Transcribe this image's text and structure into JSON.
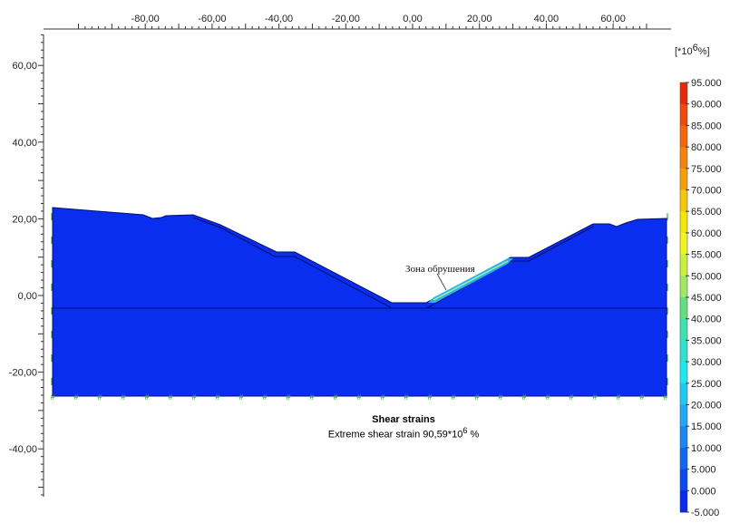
{
  "chart_data": {
    "type": "heatmap",
    "title": "Shear strains",
    "subtitle_prefix": "Extreme shear strain 90,59*10",
    "subtitle_exp": "6",
    "subtitle_suffix": " %",
    "x_ticks": [
      "-80,00",
      "-60,00",
      "-40,00",
      "-20,00",
      "0,00",
      "20,00",
      "40,00",
      "60,00"
    ],
    "x_tick_values": [
      -80,
      -60,
      -40,
      -20,
      0,
      20,
      40,
      60
    ],
    "y_ticks": [
      "60,00",
      "40,00",
      "20,00",
      "0,00",
      "-20,00",
      "-40,00"
    ],
    "y_tick_values": [
      60,
      40,
      20,
      0,
      -20,
      -40
    ],
    "annotation": "Зона обрушения",
    "colorbar": {
      "unit_prefix": "[*10",
      "unit_exp": "6",
      "unit_suffix": "%]",
      "labels": [
        "95.000",
        "90.000",
        "85.000",
        "80.000",
        "75.000",
        "70.000",
        "65.000",
        "60.000",
        "55.000",
        "50.000",
        "45.000",
        "40.000",
        "35.000",
        "30.000",
        "25.000",
        "20.000",
        "15.000",
        "10.000",
        "5.000",
        "0.000",
        "-5.000"
      ],
      "colors": [
        "#e8280a",
        "#f04a0a",
        "#f5660a",
        "#f5820a",
        "#f5a00a",
        "#f5c80a",
        "#f5e60a",
        "#f0f520",
        "#c8f040",
        "#a0e860",
        "#60e080",
        "#40e0b0",
        "#30e0d0",
        "#20e8f0",
        "#20c8f5",
        "#20a8f5",
        "#1a88f0",
        "#1068f0",
        "#0a48f0",
        "#0a28f0"
      ]
    },
    "main_color": "#0a2ef0"
  }
}
